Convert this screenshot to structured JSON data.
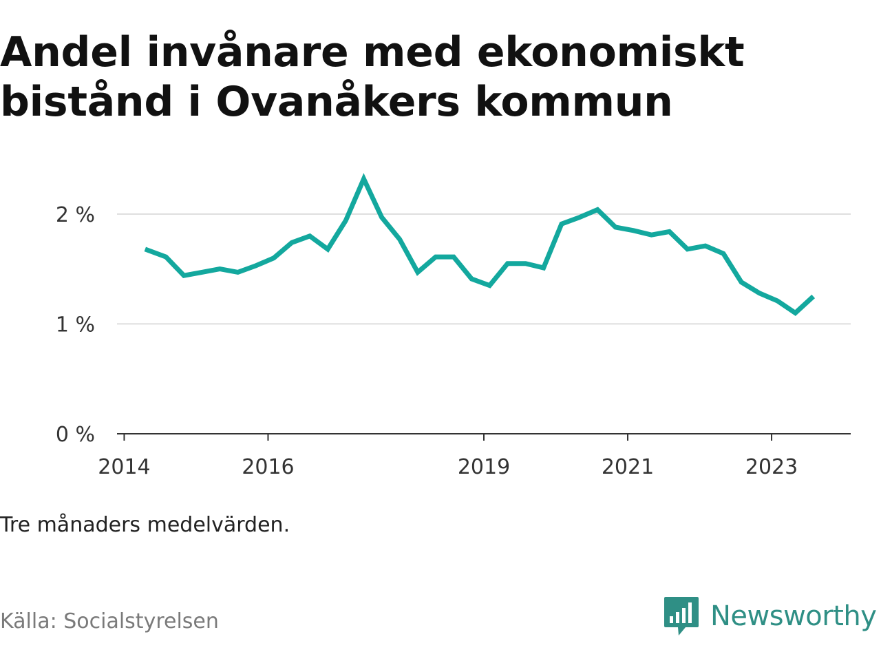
{
  "title": "Andel invånare med ekonomiskt bistånd i Ovanåkers kommun",
  "note": "Tre månaders medelvärden.",
  "source": "Källa: Socialstyrelsen",
  "brand": {
    "name": "Newsworthy",
    "color": "#2f8f85",
    "icon": "bar-chart-speech-bubble-icon"
  },
  "colors": {
    "line": "#13a89e",
    "grid": "#dddddd",
    "axis": "#333333"
  },
  "chart_data": {
    "type": "line",
    "title": "Andel invånare med ekonomiskt bistånd i Ovanåkers kommun",
    "xlabel": "",
    "ylabel": "",
    "y_ticks": [
      0,
      1,
      2
    ],
    "y_tick_labels": [
      "0 %",
      "1 %",
      "2 %"
    ],
    "ylim": [
      0,
      2.35
    ],
    "x_ticks": [
      2014,
      2016,
      2019,
      2021,
      2023
    ],
    "x_tick_labels": [
      "2014",
      "2016",
      "2019",
      "2021",
      "2023"
    ],
    "xlim": [
      2013.9,
      2024.1
    ],
    "grid": true,
    "legend": "none",
    "series": [
      {
        "x": [
          2014.29,
          2014.58,
          2014.83,
          2015.08,
          2015.33,
          2015.58,
          2015.83,
          2016.08,
          2016.33,
          2016.58,
          2016.83,
          2017.08,
          2017.33,
          2017.58,
          2017.83,
          2018.08,
          2018.33,
          2018.58,
          2018.83,
          2019.08,
          2019.33,
          2019.58,
          2019.83,
          2020.08,
          2020.33,
          2020.58,
          2020.83,
          2021.08,
          2021.33,
          2021.58,
          2021.83,
          2022.08,
          2022.33,
          2022.58,
          2022.83,
          2023.08,
          2023.33,
          2023.58
        ],
        "values": [
          1.68,
          1.61,
          1.44,
          1.47,
          1.5,
          1.47,
          1.53,
          1.6,
          1.74,
          1.8,
          1.68,
          1.94,
          2.32,
          1.97,
          1.77,
          1.47,
          1.61,
          1.61,
          1.41,
          1.35,
          1.55,
          1.55,
          1.51,
          1.91,
          1.97,
          2.04,
          1.88,
          1.85,
          1.81,
          1.84,
          1.68,
          1.71,
          1.64,
          1.38,
          1.28,
          1.21,
          1.1,
          1.25
        ]
      }
    ]
  }
}
